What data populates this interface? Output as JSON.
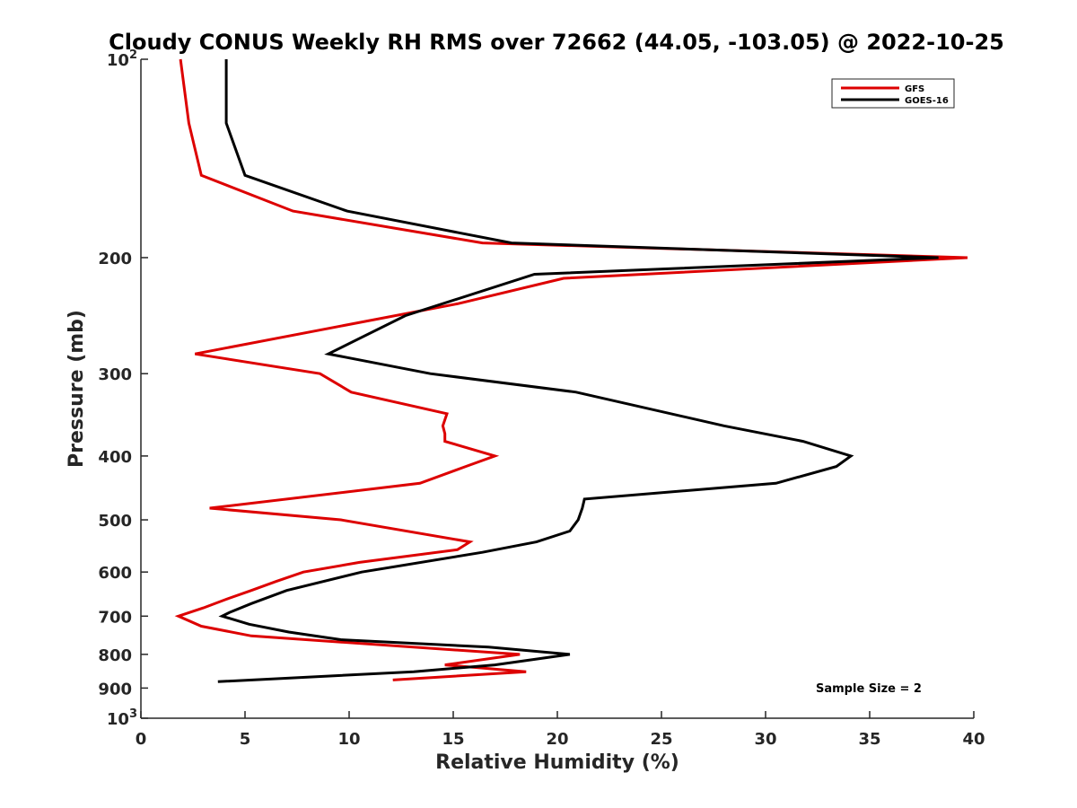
{
  "chart_data": {
    "type": "line",
    "title": "Cloudy CONUS Weekly RH RMS over 72662 (44.05, -103.05) @ 2022-10-25",
    "xlabel": "Relative Humidity (%)",
    "ylabel": "Pressure (mb)",
    "xlim": [
      0,
      40
    ],
    "ylim": [
      100,
      1000
    ],
    "y_scale": "log",
    "y_reversed": true,
    "x_ticks": [
      0,
      5,
      10,
      15,
      20,
      25,
      30,
      35,
      40
    ],
    "x_tick_labels": [
      "0",
      "5",
      "10",
      "15",
      "20",
      "25",
      "30",
      "35",
      "40"
    ],
    "y_ticks": [
      {
        "value": 100,
        "label": "10",
        "sup": "2"
      },
      {
        "value": 200,
        "label": "200",
        "sup": ""
      },
      {
        "value": 300,
        "label": "300",
        "sup": ""
      },
      {
        "value": 400,
        "label": "400",
        "sup": ""
      },
      {
        "value": 500,
        "label": "500",
        "sup": ""
      },
      {
        "value": 600,
        "label": "600",
        "sup": ""
      },
      {
        "value": 700,
        "label": "700",
        "sup": ""
      },
      {
        "value": 800,
        "label": "800",
        "sup": ""
      },
      {
        "value": 900,
        "label": "900",
        "sup": ""
      },
      {
        "value": 1000,
        "label": "10",
        "sup": "3"
      }
    ],
    "grid": false,
    "legend_position": "top-right",
    "annotation": "Sample Size = 2",
    "series": [
      {
        "name": "GFS",
        "color": "#dd0000",
        "points": [
          [
            1.9,
            100
          ],
          [
            2.3,
            125
          ],
          [
            2.9,
            150
          ],
          [
            7.3,
            170
          ],
          [
            16.4,
            190
          ],
          [
            39.7,
            200
          ],
          [
            20.3,
            215
          ],
          [
            15.2,
            235
          ],
          [
            2.6,
            280
          ],
          [
            8.6,
            300
          ],
          [
            10.1,
            320
          ],
          [
            14.7,
            345
          ],
          [
            14.5,
            360
          ],
          [
            14.6,
            370
          ],
          [
            14.6,
            380
          ],
          [
            17.0,
            400
          ],
          [
            15.6,
            415
          ],
          [
            13.4,
            440
          ],
          [
            3.3,
            480
          ],
          [
            9.6,
            500
          ],
          [
            15.8,
            540
          ],
          [
            15.2,
            555
          ],
          [
            10.5,
            580
          ],
          [
            7.8,
            600
          ],
          [
            6.5,
            620
          ],
          [
            5.3,
            640
          ],
          [
            4.1,
            660
          ],
          [
            3.0,
            680
          ],
          [
            1.8,
            700
          ],
          [
            2.9,
            725
          ],
          [
            5.3,
            750
          ],
          [
            18.2,
            800
          ],
          [
            14.6,
            830
          ],
          [
            18.5,
            850
          ],
          [
            12.1,
            875
          ]
        ]
      },
      {
        "name": "GOES-16",
        "color": "#000000",
        "points": [
          [
            4.1,
            100
          ],
          [
            4.1,
            125
          ],
          [
            5.0,
            150
          ],
          [
            9.9,
            170
          ],
          [
            17.8,
            190
          ],
          [
            38.3,
            200
          ],
          [
            18.9,
            212
          ],
          [
            12.7,
            245
          ],
          [
            9.0,
            280
          ],
          [
            13.9,
            300
          ],
          [
            20.9,
            320
          ],
          [
            28.0,
            360
          ],
          [
            31.8,
            380
          ],
          [
            34.1,
            400
          ],
          [
            33.4,
            415
          ],
          [
            30.5,
            440
          ],
          [
            21.3,
            465
          ],
          [
            21.2,
            480
          ],
          [
            21.0,
            500
          ],
          [
            20.6,
            520
          ],
          [
            19.0,
            540
          ],
          [
            16.4,
            560
          ],
          [
            10.6,
            600
          ],
          [
            7.0,
            640
          ],
          [
            5.3,
            670
          ],
          [
            4.3,
            690
          ],
          [
            3.9,
            700
          ],
          [
            5.2,
            720
          ],
          [
            7.1,
            740
          ],
          [
            9.6,
            760
          ],
          [
            16.7,
            780
          ],
          [
            20.6,
            800
          ],
          [
            17.0,
            830
          ],
          [
            13.1,
            850
          ],
          [
            3.7,
            880
          ]
        ]
      }
    ]
  }
}
